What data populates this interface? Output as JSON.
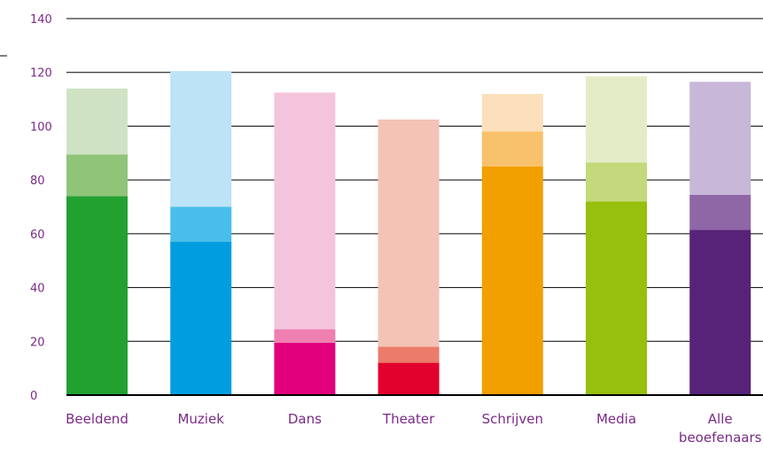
{
  "chart_data": {
    "type": "bar",
    "stacked": true,
    "categories": [
      "Beeldend",
      "Muziek",
      "Dans",
      "Theater",
      "Schrijven",
      "Media",
      "Alle beoefenaars"
    ],
    "category_labels": [
      [
        "Beeldend"
      ],
      [
        "Muziek"
      ],
      [
        "Dans"
      ],
      [
        "Theater"
      ],
      [
        "Schrijven"
      ],
      [
        "Media"
      ],
      [
        "Alle",
        "beoefenaars"
      ]
    ],
    "segments": [
      {
        "values": [
          74,
          57,
          19.5,
          12,
          85,
          72,
          61.5
        ]
      },
      {
        "values": [
          15.5,
          13,
          5,
          6,
          13,
          14.5,
          13
        ]
      },
      {
        "values": [
          24.5,
          50.5,
          88,
          84.5,
          14,
          32,
          42
        ]
      }
    ],
    "colors": [
      [
        "#22a131",
        "#8fc479",
        "#cfe3c4"
      ],
      [
        "#009ee0",
        "#48bfea",
        "#bde3f6"
      ],
      [
        "#e3007c",
        "#ee7fb0",
        "#f4c4dd"
      ],
      [
        "#e2002c",
        "#ec7b6a",
        "#f4c3b6"
      ],
      [
        "#f29f00",
        "#f8c16b",
        "#fbe0bb"
      ],
      [
        "#97bf0d",
        "#c4d87c",
        "#e4ecc6"
      ],
      [
        "#562379",
        "#8f67a6",
        "#c8b7d8"
      ]
    ],
    "yticks": [
      0,
      20,
      40,
      60,
      80,
      100,
      120,
      140
    ],
    "ylim": [
      0,
      140
    ],
    "grid": true
  }
}
